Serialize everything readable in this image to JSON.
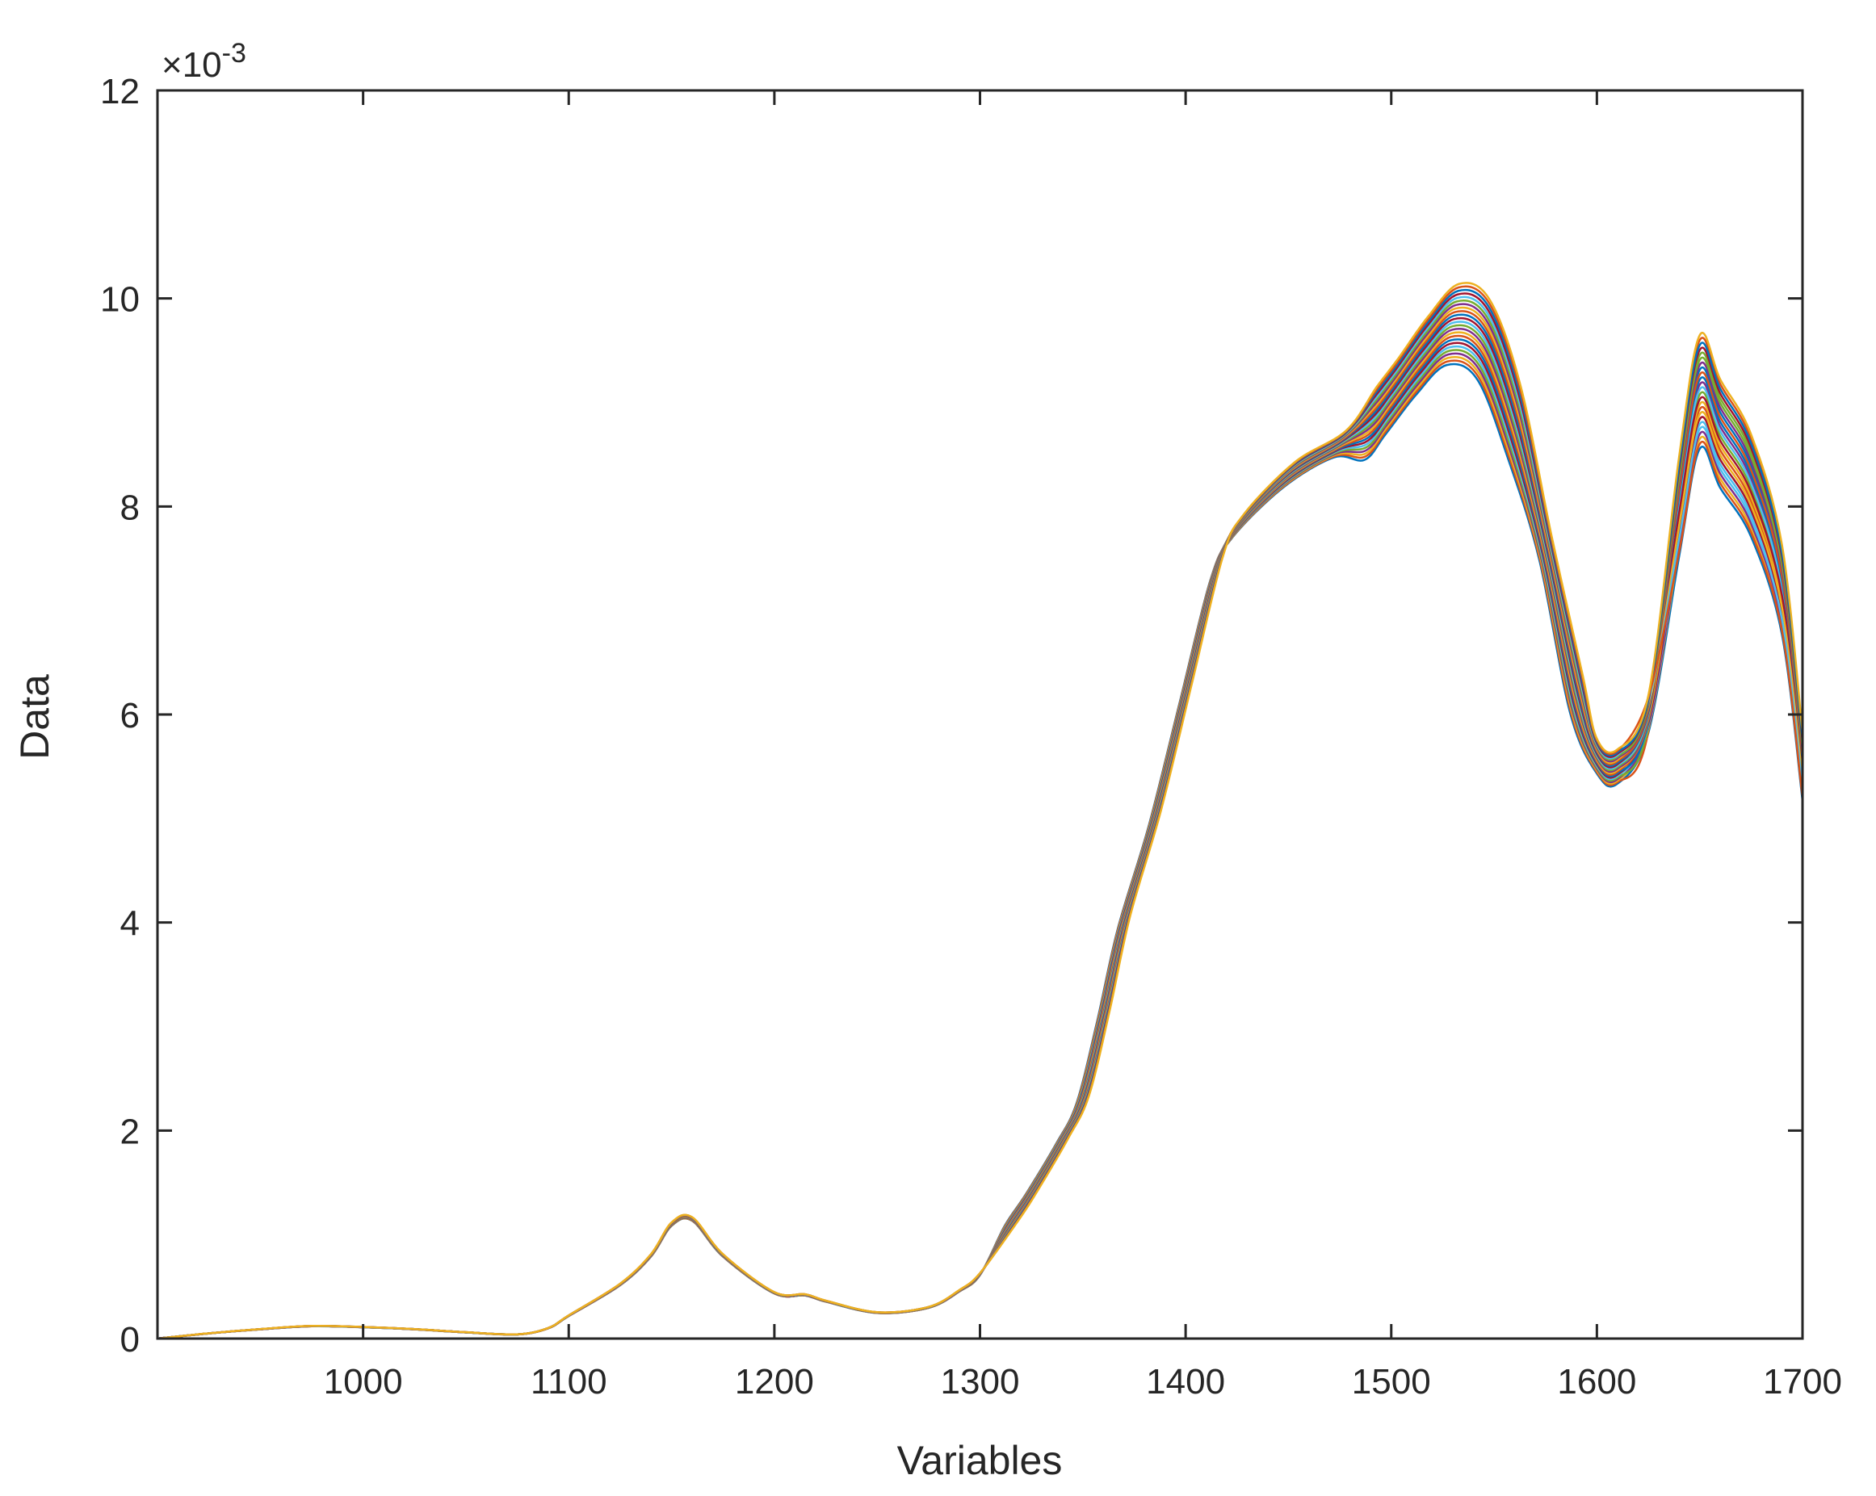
{
  "chart_data": {
    "type": "line",
    "title": "",
    "xlabel": "Variables",
    "ylabel": "Data",
    "xlim": [
      900,
      1700
    ],
    "ylim": [
      0,
      12
    ],
    "y_multiplier": {
      "base": "×10",
      "exponent": "-3"
    },
    "x_ticks": [
      1000,
      1100,
      1200,
      1300,
      1400,
      1500,
      1600,
      1700
    ],
    "x_tick_labels": [
      "1000",
      "1100",
      "1200",
      "1300",
      "1400",
      "1500",
      "1600",
      "1700"
    ],
    "y_ticks": [
      0,
      2,
      4,
      6,
      8,
      10,
      12
    ],
    "y_tick_labels": [
      "0",
      "2",
      "4",
      "6",
      "8",
      "10",
      "12"
    ],
    "grid": false,
    "series_count": 24,
    "colors": [
      "#0072BD",
      "#D95319",
      "#EDB120",
      "#7E2F8E",
      "#77AC30",
      "#4DBEEE",
      "#A2142F"
    ],
    "x": [
      900,
      925,
      950,
      975,
      1000,
      1025,
      1050,
      1075,
      1090,
      1100,
      1125,
      1140,
      1150,
      1160,
      1175,
      1200,
      1215,
      1225,
      1250,
      1275,
      1290,
      1300,
      1315,
      1325,
      1340,
      1350,
      1360,
      1370,
      1385,
      1400,
      1415,
      1425,
      1450,
      1475,
      1490,
      1500,
      1515,
      1530,
      1545,
      1560,
      1575,
      1590,
      1600,
      1610,
      1625,
      1640,
      1650,
      1660,
      1675,
      1690,
      1700
    ],
    "series": [
      {
        "values": [
          0.0,
          0.05,
          0.09,
          0.12,
          0.11,
          0.09,
          0.06,
          0.04,
          0.1,
          0.22,
          0.52,
          0.8,
          1.1,
          1.15,
          0.8,
          0.44,
          0.42,
          0.36,
          0.25,
          0.3,
          0.46,
          0.62,
          1.1,
          1.4,
          1.9,
          2.3,
          3.1,
          4.0,
          5.0,
          6.2,
          7.4,
          7.8,
          8.3,
          8.6,
          8.8,
          9.05,
          9.45,
          9.75,
          9.6,
          8.8,
          7.6,
          6.2,
          5.6,
          5.5,
          6.0,
          8.0,
          9.1,
          8.7,
          8.2,
          7.2,
          5.5
        ]
      }
    ]
  }
}
